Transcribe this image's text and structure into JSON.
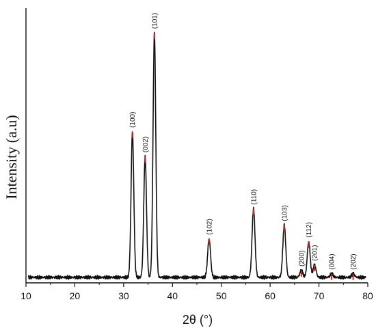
{
  "chart_data": {
    "type": "line",
    "title": "",
    "xlabel": "2θ (°)",
    "ylabel": "Intensity (a.u)",
    "xlim": [
      10,
      80
    ],
    "ylim": [
      0,
      100
    ],
    "y_ticks_shown": false,
    "x_ticks": [
      10,
      20,
      30,
      40,
      50,
      60,
      70,
      80
    ],
    "x_tick_labels": [
      "10",
      "20",
      "30",
      "40",
      "50",
      "60",
      "70",
      "80"
    ],
    "grid": false,
    "legend": "none",
    "baseline": 2,
    "line_color": "#111111",
    "peak_marker_color": "#d42020",
    "peaks": [
      {
        "x": 31.8,
        "y": 55,
        "label": "(100)"
      },
      {
        "x": 34.4,
        "y": 46,
        "label": "(002)"
      },
      {
        "x": 36.3,
        "y": 91,
        "label": "(101)"
      },
      {
        "x": 47.5,
        "y": 16,
        "label": "(102)"
      },
      {
        "x": 56.6,
        "y": 27,
        "label": "(110)"
      },
      {
        "x": 62.9,
        "y": 21,
        "label": "(103)"
      },
      {
        "x": 66.4,
        "y": 4.5,
        "label": "(200)"
      },
      {
        "x": 67.9,
        "y": 15,
        "label": "(112)"
      },
      {
        "x": 69.1,
        "y": 6.5,
        "label": "(201)"
      },
      {
        "x": 72.6,
        "y": 3.3,
        "label": "(004)"
      },
      {
        "x": 77.0,
        "y": 3.3,
        "label": "(202)"
      }
    ]
  }
}
